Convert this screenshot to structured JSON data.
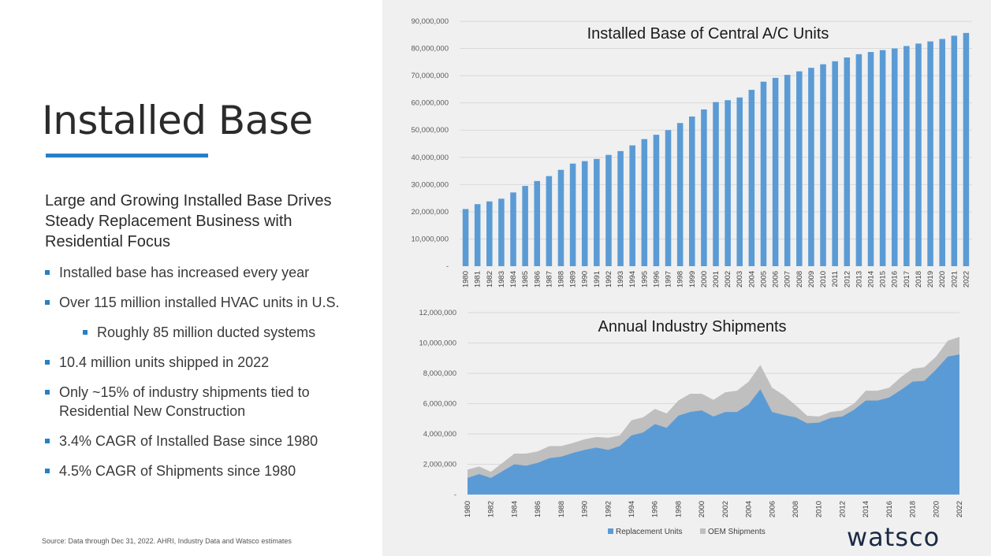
{
  "slide": {
    "title": "Installed Base",
    "subtitle": "Large and Growing Installed Base Drives Steady Replacement Business with Residential Focus",
    "bullets": [
      "Installed base has increased every year",
      "Over 115 million installed HVAC units in U.S.",
      "Roughly 85 million ducted systems",
      "10.4 million units shipped in 2022",
      "Only ~15% of industry shipments tied to Residential New Construction",
      "3.4% CAGR of Installed Base since 1980",
      "4.5% CAGR of Shipments since 1980"
    ],
    "source": "Source: Data through Dec 31, 2022.  AHRI, Industry Data and Watsco estimates",
    "logo": "watsco"
  },
  "colors": {
    "accent": "#2680c6",
    "bar": "#5b9bd5",
    "oem": "#bfbfbf",
    "panel": "#f0f0f0"
  },
  "chart_data": [
    {
      "type": "bar",
      "title": "Installed Base of Central A/C Units",
      "categories": [
        "1980",
        "1981",
        "1982",
        "1983",
        "1984",
        "1985",
        "1986",
        "1987",
        "1988",
        "1989",
        "1990",
        "1991",
        "1992",
        "1993",
        "1994",
        "1995",
        "1996",
        "1997",
        "1998",
        "1999",
        "2000",
        "2001",
        "2002",
        "2003",
        "2004",
        "2005",
        "2006",
        "2007",
        "2008",
        "2009",
        "2010",
        "2011",
        "2012",
        "2013",
        "2014",
        "2015",
        "2016",
        "2017",
        "2018",
        "2019",
        "2020",
        "2021",
        "2022"
      ],
      "values": [
        21000000,
        22800000,
        23800000,
        24800000,
        27100000,
        29500000,
        31300000,
        33100000,
        35400000,
        37700000,
        38600000,
        39400000,
        40900000,
        42300000,
        44400000,
        46700000,
        48300000,
        50000000,
        52600000,
        55000000,
        57600000,
        60300000,
        61000000,
        62000000,
        64800000,
        67800000,
        69200000,
        70300000,
        71600000,
        72900000,
        74200000,
        75300000,
        76700000,
        77900000,
        78700000,
        79400000,
        80000000,
        80900000,
        81800000,
        82600000,
        83500000,
        84700000,
        85700000
      ],
      "ylim": [
        0,
        90000000
      ],
      "yticks": [
        "-",
        "10,000,000",
        "20,000,000",
        "30,000,000",
        "40,000,000",
        "50,000,000",
        "60,000,000",
        "70,000,000",
        "80,000,000",
        "90,000,000"
      ],
      "grid": true
    },
    {
      "type": "area",
      "title": "Annual Industry Shipments",
      "x": [
        "1980",
        "1981",
        "1982",
        "1983",
        "1984",
        "1985",
        "1986",
        "1987",
        "1988",
        "1989",
        "1990",
        "1991",
        "1992",
        "1993",
        "1994",
        "1995",
        "1996",
        "1997",
        "1998",
        "1999",
        "2000",
        "2001",
        "2002",
        "2003",
        "2004",
        "2005",
        "2006",
        "2007",
        "2008",
        "2009",
        "2010",
        "2011",
        "2012",
        "2013",
        "2014",
        "2015",
        "2016",
        "2017",
        "2018",
        "2019",
        "2020",
        "2021",
        "2022"
      ],
      "xtick_labels": [
        "1980",
        "1982",
        "1984",
        "1986",
        "1988",
        "1990",
        "1992",
        "1994",
        "1996",
        "1998",
        "2000",
        "2002",
        "2004",
        "2006",
        "2008",
        "2010",
        "2012",
        "2014",
        "2016",
        "2018",
        "2020",
        "2022"
      ],
      "series": [
        {
          "name": "Replacement Units",
          "values": [
            1100000,
            1350000,
            1100000,
            1550000,
            2000000,
            1900000,
            2100000,
            2400000,
            2500000,
            2750000,
            2950000,
            3100000,
            2950000,
            3200000,
            3900000,
            4100000,
            4650000,
            4400000,
            5200000,
            5450000,
            5550000,
            5150000,
            5450000,
            5450000,
            5950000,
            6950000,
            5450000,
            5250000,
            5100000,
            4700000,
            4750000,
            5050000,
            5150000,
            5600000,
            6200000,
            6200000,
            6400000,
            6900000,
            7450000,
            7500000,
            8250000,
            9100000,
            9250000
          ]
        },
        {
          "name": "OEM Shipments",
          "values": [
            550000,
            500000,
            400000,
            550000,
            700000,
            800000,
            750000,
            800000,
            700000,
            650000,
            700000,
            700000,
            800000,
            700000,
            1000000,
            1000000,
            1000000,
            950000,
            1000000,
            1200000,
            1100000,
            1100000,
            1300000,
            1400000,
            1500000,
            1600000,
            1600000,
            1300000,
            800000,
            500000,
            400000,
            400000,
            400000,
            400000,
            650000,
            650000,
            650000,
            850000,
            850000,
            900000,
            850000,
            1050000,
            1150000
          ]
        }
      ],
      "ylim": [
        0,
        12000000
      ],
      "yticks": [
        "-",
        "2,000,000",
        "4,000,000",
        "6,000,000",
        "8,000,000",
        "10,000,000",
        "12,000,000"
      ],
      "legend": "bottom",
      "grid": true
    }
  ]
}
